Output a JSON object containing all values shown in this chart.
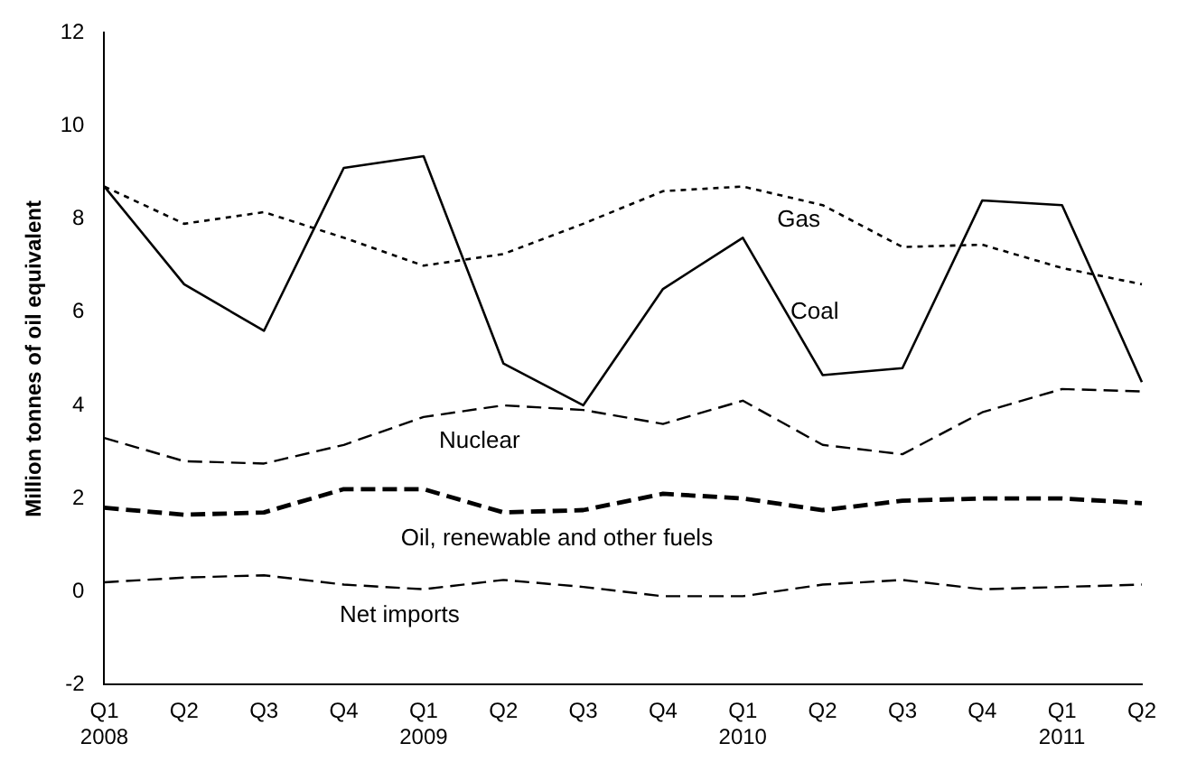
{
  "chart_data": {
    "type": "line",
    "ylabel": "Million tonnes of oil equivalent",
    "categories": [
      "Q1 2008",
      "Q2",
      "Q3",
      "Q4",
      "Q1 2009",
      "Q2",
      "Q3",
      "Q4",
      "Q1 2010",
      "Q2",
      "Q3",
      "Q4",
      "Q1 2011",
      "Q2"
    ],
    "ylim": [
      -2,
      12
    ],
    "yticks": [
      -2,
      0,
      2,
      4,
      6,
      8,
      10,
      12
    ],
    "grid": false,
    "legend": false,
    "marker": "none",
    "series": [
      {
        "name": "Coal",
        "color": "#000000",
        "line_style": "solid",
        "values": [
          8.7,
          6.6,
          5.6,
          9.1,
          9.35,
          4.9,
          4.0,
          6.5,
          7.6,
          4.65,
          4.8,
          8.4,
          8.3,
          4.5
        ]
      },
      {
        "name": "Gas",
        "color": "#000000",
        "line_style": "dotted",
        "values": [
          8.7,
          7.9,
          8.15,
          7.6,
          7.0,
          7.25,
          7.9,
          8.6,
          8.7,
          8.3,
          7.4,
          7.45,
          6.95,
          6.6
        ]
      },
      {
        "name": "Nuclear",
        "color": "#000000",
        "line_style": "dashed",
        "values": [
          3.3,
          2.8,
          2.75,
          3.15,
          3.75,
          4.0,
          3.9,
          3.6,
          4.1,
          3.15,
          2.95,
          3.85,
          4.35,
          4.3
        ]
      },
      {
        "name": "Oil, renewable and other fuels",
        "color": "#000000",
        "line_style": "dashed",
        "values": [
          1.8,
          1.65,
          1.7,
          2.2,
          2.2,
          1.7,
          1.75,
          2.1,
          2.0,
          1.75,
          1.95,
          2.0,
          2.0,
          1.9
        ]
      },
      {
        "name": "Net imports",
        "color": "#000000",
        "line_style": "dashed",
        "values": [
          0.2,
          0.3,
          0.35,
          0.15,
          0.05,
          0.25,
          0.1,
          -0.1,
          -0.1,
          0.15,
          0.25,
          0.05,
          0.1,
          0.15
        ]
      }
    ]
  }
}
